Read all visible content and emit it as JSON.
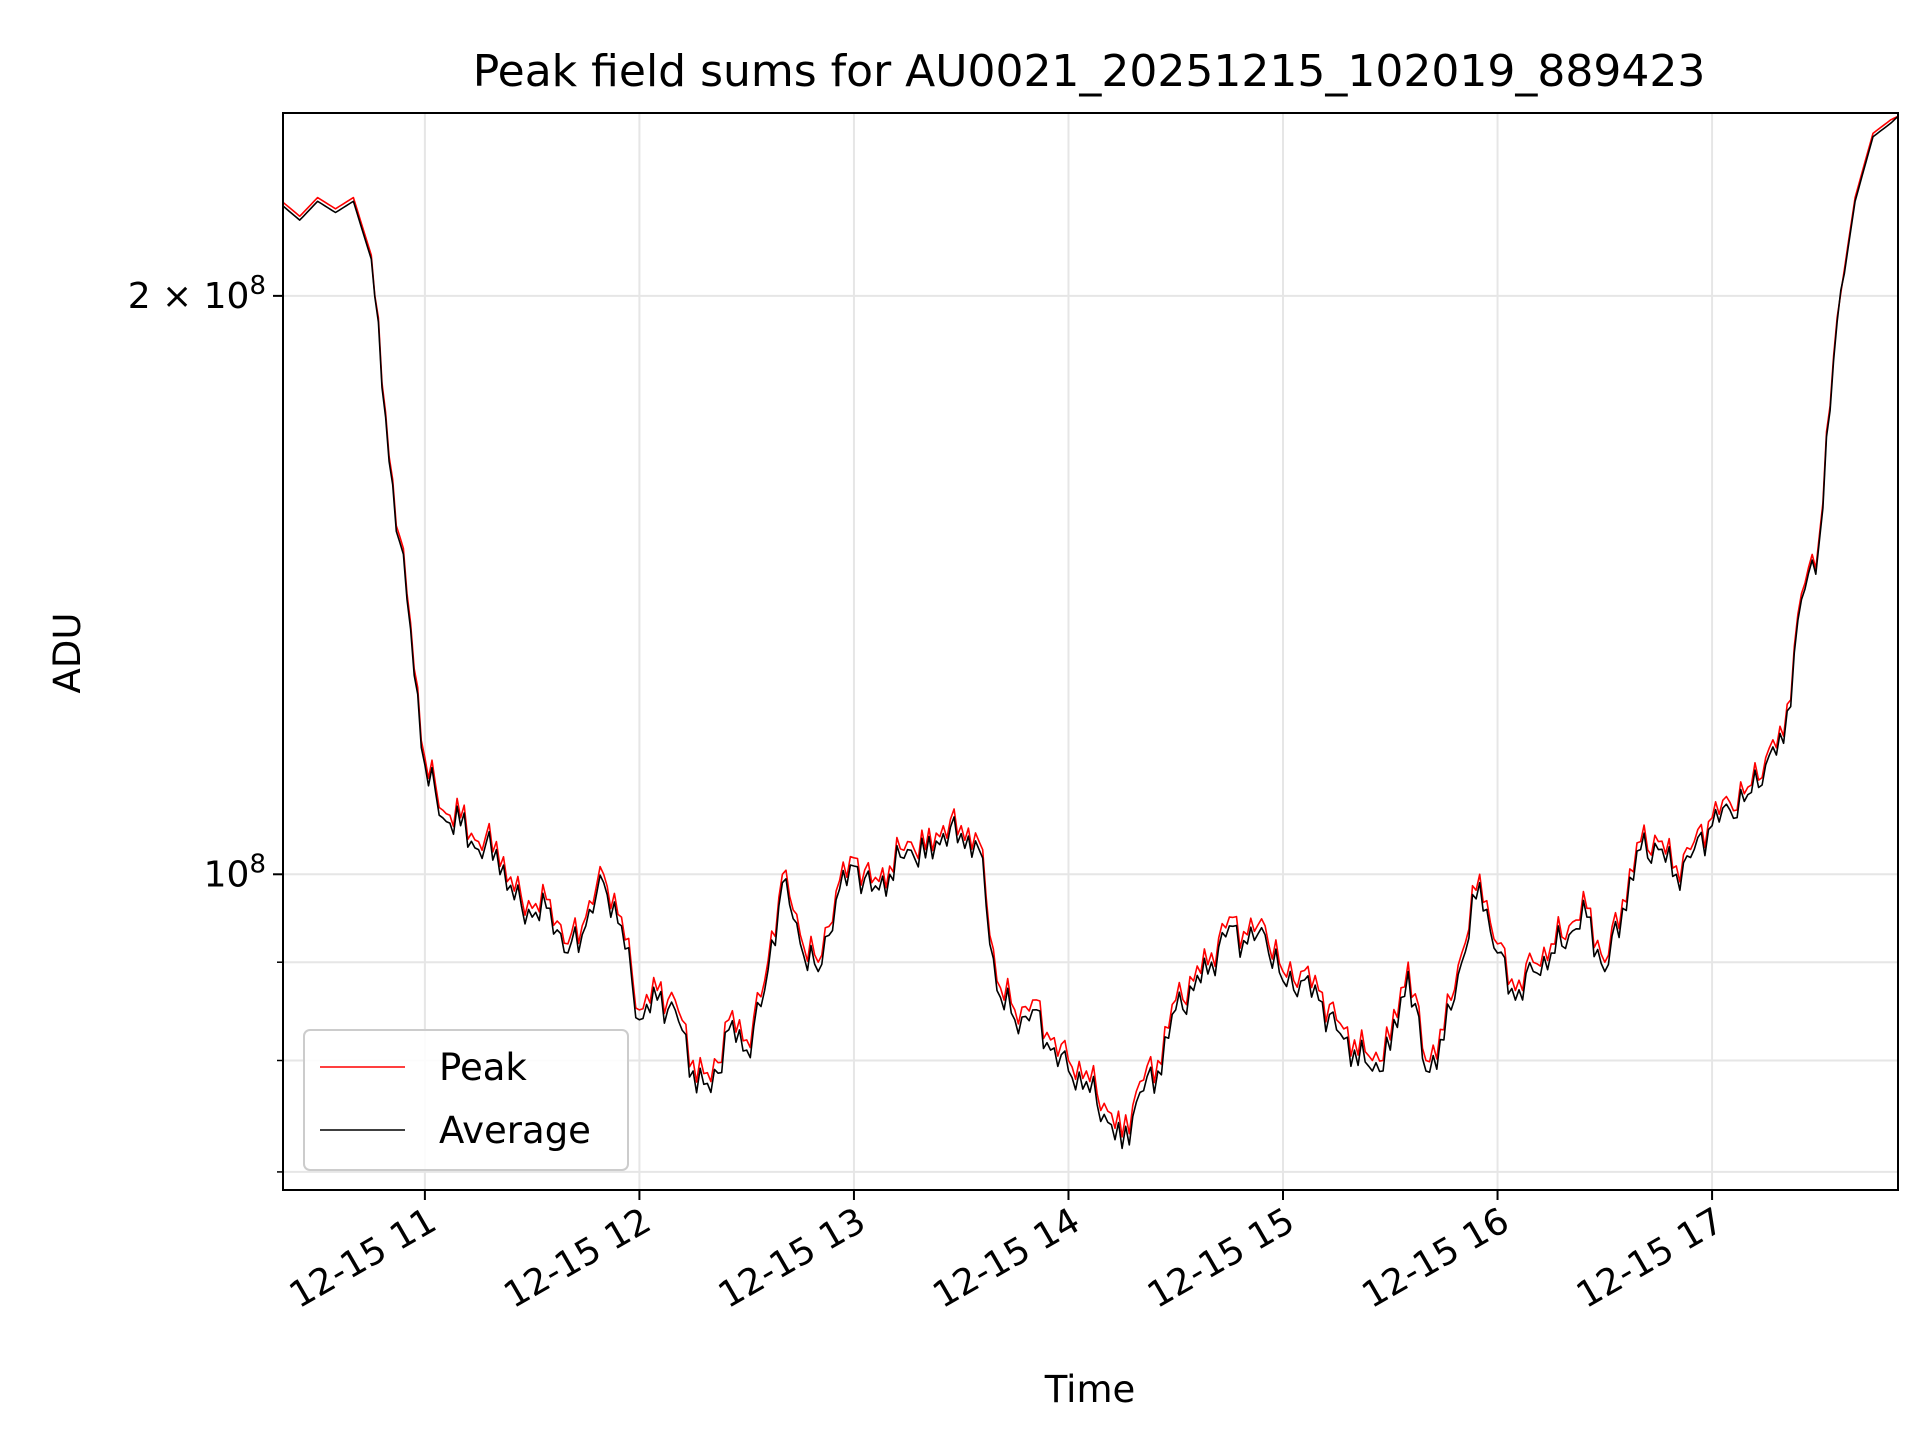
{
  "chart_data": {
    "type": "line",
    "title": "Peak field sums for AU0021_20251215_102019_889423",
    "xlabel": "Time",
    "ylabel": "ADU",
    "y_scale": "log",
    "grid": true,
    "legend_position": "lower-left",
    "x_range": [
      "2025-12-15 10:20:19",
      "2025-12-15 17:52:00"
    ],
    "y_range": [
      68500000,
      249000000
    ],
    "x_ticks": [
      "12-15 11",
      "12-15 12",
      "12-15 13",
      "12-15 14",
      "12-15 15",
      "12-15 16",
      "12-15 17"
    ],
    "y_ticks": [
      {
        "value": 100000000,
        "label_base": "10",
        "label_exp": "8",
        "label_prefix": ""
      },
      {
        "value": 200000000,
        "label_base": "10",
        "label_exp": "8",
        "label_prefix": "2 × "
      }
    ],
    "y_minor_ticks": [
      70000000,
      80000000,
      90000000
    ],
    "x": [
      "10:20",
      "10:25",
      "10:30",
      "10:35",
      "10:40",
      "10:45",
      "10:50",
      "10:55",
      "11:00",
      "11:05",
      "11:10",
      "11:15",
      "11:20",
      "11:25",
      "11:30",
      "11:35",
      "11:40",
      "11:45",
      "11:50",
      "11:55",
      "12:00",
      "12:05",
      "12:10",
      "12:15",
      "12:20",
      "12:25",
      "12:30",
      "12:35",
      "12:40",
      "12:45",
      "12:50",
      "12:55",
      "13:00",
      "13:05",
      "13:10",
      "13:15",
      "13:20",
      "13:25",
      "13:30",
      "13:35",
      "13:40",
      "13:45",
      "13:50",
      "13:55",
      "14:00",
      "14:05",
      "14:10",
      "14:15",
      "14:20",
      "14:25",
      "14:30",
      "14:35",
      "14:40",
      "14:45",
      "14:50",
      "14:55",
      "15:00",
      "15:05",
      "15:10",
      "15:15",
      "15:20",
      "15:25",
      "15:30",
      "15:35",
      "15:40",
      "15:45",
      "15:50",
      "15:55",
      "16:00",
      "16:05",
      "16:10",
      "16:15",
      "16:20",
      "16:25",
      "16:30",
      "16:35",
      "16:40",
      "16:45",
      "16:50",
      "16:55",
      "17:00",
      "17:05",
      "17:10",
      "17:15",
      "17:20",
      "17:25",
      "17:30",
      "17:35",
      "17:40",
      "17:45",
      "17:50",
      "17:52"
    ],
    "series": [
      {
        "name": "Peak",
        "color": "#ff0000",
        "values": [
          224000000,
          220000000,
          225000000,
          222000000,
          225000000,
          210000000,
          165000000,
          140000000,
          115000000,
          108000000,
          107000000,
          104000000,
          104000000,
          98000000,
          96000000,
          97000000,
          92000000,
          95000000,
          100000000,
          95000000,
          85000000,
          87000000,
          86000000,
          80000000,
          78000000,
          84000000,
          82000000,
          88000000,
          100000000,
          93000000,
          90000000,
          98000000,
          102000000,
          99000000,
          101000000,
          104000000,
          103000000,
          106000000,
          106000000,
          104000000,
          88000000,
          85000000,
          86000000,
          82000000,
          80000000,
          79000000,
          76000000,
          73000000,
          78000000,
          80000000,
          86000000,
          88000000,
          91000000,
          95000000,
          93000000,
          94000000,
          89000000,
          89000000,
          87000000,
          84000000,
          82000000,
          80000000,
          82000000,
          90000000,
          80000000,
          83000000,
          91000000,
          100000000,
          92000000,
          87000000,
          90000000,
          92000000,
          94000000,
          96000000,
          90000000,
          97000000,
          104000000,
          104000000,
          101000000,
          104000000,
          107000000,
          109000000,
          111000000,
          115000000,
          118000000,
          140000000,
          150000000,
          195000000,
          225000000,
          243000000,
          247000000,
          248000000
        ]
      },
      {
        "name": "Average",
        "color": "#000000",
        "values": [
          223000000,
          219000000,
          224000000,
          221000000,
          224000000,
          209000000,
          164000000,
          139000000,
          114000000,
          107000000,
          106000000,
          103000000,
          103000000,
          97000000,
          95000000,
          96000000,
          91000000,
          94000000,
          99000000,
          94000000,
          84000000,
          86000000,
          85000000,
          79000000,
          77000000,
          83000000,
          81000000,
          87000000,
          99000000,
          92000000,
          89000000,
          97000000,
          101000000,
          98000000,
          100000000,
          103000000,
          102000000,
          105000000,
          105000000,
          103000000,
          87000000,
          84000000,
          85000000,
          81000000,
          79000000,
          78000000,
          75000000,
          72000000,
          77000000,
          79000000,
          85000000,
          87000000,
          90000000,
          94000000,
          92000000,
          93000000,
          88000000,
          88000000,
          86000000,
          83000000,
          81000000,
          79000000,
          81000000,
          89000000,
          79000000,
          82000000,
          90000000,
          99000000,
          91000000,
          86000000,
          89000000,
          91000000,
          93000000,
          95000000,
          89000000,
          96000000,
          103000000,
          103000000,
          100000000,
          103000000,
          106000000,
          108000000,
          110000000,
          114000000,
          117000000,
          139000000,
          149000000,
          194000000,
          224000000,
          242000000,
          246000000,
          248000000
        ]
      }
    ]
  }
}
